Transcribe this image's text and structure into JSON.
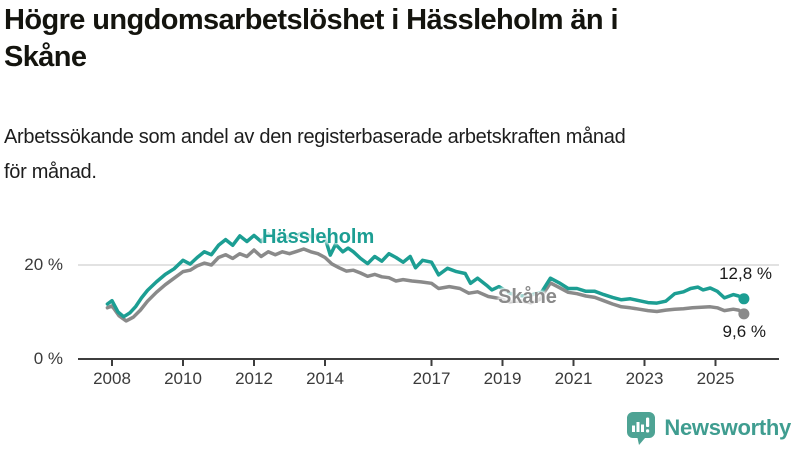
{
  "header": {
    "title_line1": "Högre ungdomsarbetslöshet i Hässleholm än i",
    "title_line2": "Skåne",
    "subtitle_line1": "Arbetssökande som andel av den registerbaserade arbetskraften månad",
    "subtitle_line2": "för månad."
  },
  "chart_data": {
    "type": "line",
    "title": "Högre ungdomsarbetslöshet i Hässleholm än i Skåne",
    "subtitle": "Arbetssökande som andel av den registerbaserade arbetskraften månad för månad.",
    "unit": "%",
    "xlabel": "",
    "ylabel": "",
    "ylim": [
      0,
      30
    ],
    "x_range": [
      2007.87,
      2025.8
    ],
    "grid": "single light horizontal gridline at 20 %",
    "legend_position": "inline labels next to lines",
    "y_ticks": [
      {
        "value": 0,
        "label": "0 %"
      },
      {
        "value": 20,
        "label": "20 %"
      }
    ],
    "x_ticks": [
      "2008",
      "2010",
      "2012",
      "2014",
      "2017",
      "2019",
      "2021",
      "2023",
      "2025"
    ],
    "colors": {
      "hassleholm": "#1C9E93",
      "skane": "#8A8A8A",
      "gridline": "#d8d8d8",
      "axis": "#3d3d3d"
    },
    "series": [
      {
        "name": "Hässleholm",
        "color": "#1C9E93",
        "end_label": "12,8 %",
        "end_value": 12.8,
        "points": [
          [
            2007.87,
            11.7
          ],
          [
            2008.0,
            12.4
          ],
          [
            2008.17,
            10.0
          ],
          [
            2008.33,
            9.0
          ],
          [
            2008.5,
            9.8
          ],
          [
            2008.67,
            11.2
          ],
          [
            2008.83,
            13.0
          ],
          [
            2009.0,
            14.6
          ],
          [
            2009.25,
            16.4
          ],
          [
            2009.5,
            18.0
          ],
          [
            2009.75,
            19.2
          ],
          [
            2010.0,
            21.0
          ],
          [
            2010.2,
            20.2
          ],
          [
            2010.4,
            21.6
          ],
          [
            2010.6,
            22.8
          ],
          [
            2010.8,
            22.2
          ],
          [
            2011.0,
            24.2
          ],
          [
            2011.2,
            25.4
          ],
          [
            2011.4,
            24.2
          ],
          [
            2011.6,
            26.2
          ],
          [
            2011.8,
            25.0
          ],
          [
            2012.0,
            26.3
          ],
          [
            2012.2,
            25.0
          ],
          [
            2012.4,
            26.6
          ],
          [
            2012.6,
            25.4
          ],
          [
            2012.8,
            26.2
          ],
          [
            2013.0,
            25.8
          ],
          [
            2013.2,
            26.3
          ],
          [
            2013.4,
            26.9
          ],
          [
            2013.6,
            26.0
          ],
          [
            2013.8,
            26.4
          ],
          [
            2014.0,
            25.8
          ],
          [
            2014.15,
            22.1
          ],
          [
            2014.3,
            24.4
          ],
          [
            2014.5,
            22.8
          ],
          [
            2014.65,
            23.6
          ],
          [
            2014.8,
            22.8
          ],
          [
            2015.0,
            21.4
          ],
          [
            2015.2,
            20.3
          ],
          [
            2015.4,
            21.8
          ],
          [
            2015.6,
            20.8
          ],
          [
            2015.8,
            22.4
          ],
          [
            2016.0,
            21.6
          ],
          [
            2016.2,
            20.6
          ],
          [
            2016.4,
            21.8
          ],
          [
            2016.55,
            19.4
          ],
          [
            2016.75,
            21.0
          ],
          [
            2017.0,
            20.6
          ],
          [
            2017.2,
            17.9
          ],
          [
            2017.45,
            19.3
          ],
          [
            2017.7,
            18.6
          ],
          [
            2017.95,
            18.2
          ],
          [
            2018.1,
            16.1
          ],
          [
            2018.3,
            17.2
          ],
          [
            2018.55,
            15.7
          ],
          [
            2018.7,
            14.7
          ],
          [
            2018.9,
            15.4
          ],
          [
            2019.2,
            14.0
          ],
          [
            2019.45,
            13.5
          ],
          [
            2019.7,
            13.4
          ],
          [
            2019.9,
            13.8
          ],
          [
            2020.1,
            14.2
          ],
          [
            2020.35,
            17.2
          ],
          [
            2020.6,
            16.2
          ],
          [
            2020.85,
            15.0
          ],
          [
            2021.1,
            15.0
          ],
          [
            2021.35,
            14.4
          ],
          [
            2021.6,
            14.4
          ],
          [
            2021.85,
            13.7
          ],
          [
            2022.1,
            13.1
          ],
          [
            2022.35,
            12.6
          ],
          [
            2022.6,
            12.8
          ],
          [
            2022.85,
            12.4
          ],
          [
            2023.1,
            12.0
          ],
          [
            2023.35,
            11.9
          ],
          [
            2023.6,
            12.3
          ],
          [
            2023.85,
            13.9
          ],
          [
            2024.1,
            14.3
          ],
          [
            2024.3,
            15.0
          ],
          [
            2024.5,
            15.3
          ],
          [
            2024.65,
            14.7
          ],
          [
            2024.85,
            15.1
          ],
          [
            2025.05,
            14.4
          ],
          [
            2025.25,
            13.0
          ],
          [
            2025.5,
            13.7
          ],
          [
            2025.65,
            13.4
          ],
          [
            2025.8,
            12.8
          ]
        ]
      },
      {
        "name": "Skåne",
        "color": "#8A8A8A",
        "end_label": "9,6 %",
        "end_value": 9.6,
        "points": [
          [
            2007.87,
            10.9
          ],
          [
            2008.0,
            11.3
          ],
          [
            2008.2,
            9.2
          ],
          [
            2008.4,
            8.1
          ],
          [
            2008.6,
            8.9
          ],
          [
            2008.8,
            10.4
          ],
          [
            2009.0,
            12.3
          ],
          [
            2009.25,
            14.2
          ],
          [
            2009.5,
            15.8
          ],
          [
            2009.75,
            17.2
          ],
          [
            2010.0,
            18.6
          ],
          [
            2010.2,
            18.9
          ],
          [
            2010.4,
            19.8
          ],
          [
            2010.6,
            20.4
          ],
          [
            2010.8,
            20.0
          ],
          [
            2011.0,
            21.6
          ],
          [
            2011.2,
            22.2
          ],
          [
            2011.4,
            21.4
          ],
          [
            2011.6,
            22.4
          ],
          [
            2011.8,
            21.8
          ],
          [
            2012.0,
            23.2
          ],
          [
            2012.2,
            21.8
          ],
          [
            2012.4,
            22.8
          ],
          [
            2012.6,
            22.2
          ],
          [
            2012.8,
            22.8
          ],
          [
            2013.0,
            22.4
          ],
          [
            2013.2,
            22.9
          ],
          [
            2013.4,
            23.4
          ],
          [
            2013.6,
            22.8
          ],
          [
            2013.8,
            22.4
          ],
          [
            2014.0,
            21.6
          ],
          [
            2014.2,
            20.2
          ],
          [
            2014.4,
            19.4
          ],
          [
            2014.6,
            18.7
          ],
          [
            2014.8,
            18.9
          ],
          [
            2015.0,
            18.3
          ],
          [
            2015.2,
            17.6
          ],
          [
            2015.4,
            18.0
          ],
          [
            2015.6,
            17.5
          ],
          [
            2015.8,
            17.3
          ],
          [
            2016.0,
            16.6
          ],
          [
            2016.2,
            16.9
          ],
          [
            2016.45,
            16.6
          ],
          [
            2016.7,
            16.4
          ],
          [
            2017.0,
            16.1
          ],
          [
            2017.2,
            15.0
          ],
          [
            2017.5,
            15.4
          ],
          [
            2017.8,
            15.0
          ],
          [
            2018.05,
            14.0
          ],
          [
            2018.3,
            14.3
          ],
          [
            2018.6,
            13.3
          ],
          [
            2018.9,
            12.9
          ],
          [
            2019.2,
            12.2
          ],
          [
            2019.5,
            12.4
          ],
          [
            2019.8,
            12.0
          ],
          [
            2020.05,
            12.7
          ],
          [
            2020.35,
            16.2
          ],
          [
            2020.6,
            15.2
          ],
          [
            2020.85,
            14.2
          ],
          [
            2021.1,
            13.9
          ],
          [
            2021.35,
            13.4
          ],
          [
            2021.6,
            13.1
          ],
          [
            2021.85,
            12.4
          ],
          [
            2022.1,
            11.7
          ],
          [
            2022.35,
            11.1
          ],
          [
            2022.6,
            10.9
          ],
          [
            2022.85,
            10.6
          ],
          [
            2023.1,
            10.3
          ],
          [
            2023.35,
            10.1
          ],
          [
            2023.6,
            10.4
          ],
          [
            2023.85,
            10.6
          ],
          [
            2024.1,
            10.7
          ],
          [
            2024.35,
            10.9
          ],
          [
            2024.6,
            11.0
          ],
          [
            2024.85,
            11.1
          ],
          [
            2025.05,
            10.9
          ],
          [
            2025.25,
            10.3
          ],
          [
            2025.5,
            10.6
          ],
          [
            2025.65,
            10.4
          ],
          [
            2025.8,
            9.6
          ]
        ]
      }
    ]
  },
  "footer": {
    "brand": "Newsworthy",
    "brand_color": "#3F9D90",
    "logo_icon": "bar-chart-speech-bubble-icon"
  }
}
